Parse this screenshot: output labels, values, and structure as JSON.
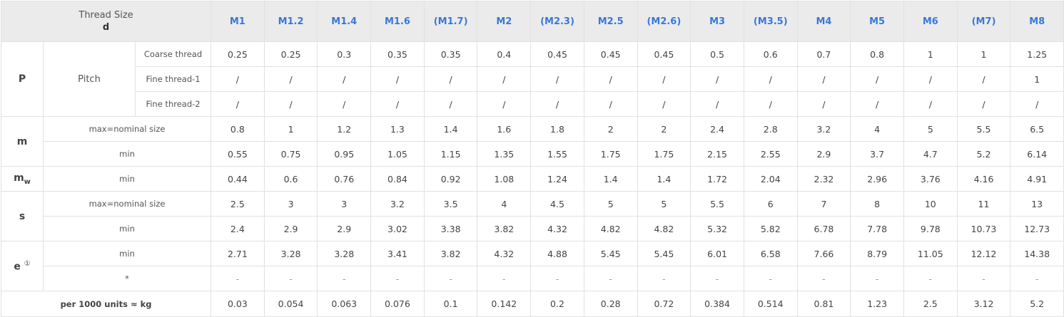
{
  "header": {
    "corner_line1": "Thread Size",
    "corner_line2": "d",
    "sizes": [
      "M1",
      "M1.2",
      "M1.4",
      "M1.6",
      "(M1.7)",
      "M2",
      "(M2.3)",
      "M2.5",
      "(M2.6)",
      "M3",
      "(M3.5)",
      "M4",
      "M5",
      "M6",
      "(M7)",
      "M8"
    ]
  },
  "rows": {
    "P": {
      "symbol": "P",
      "group_label": "Pitch",
      "coarse": {
        "label": "Coarse thread",
        "values": [
          "0.25",
          "0.25",
          "0.3",
          "0.35",
          "0.35",
          "0.4",
          "0.45",
          "0.45",
          "0.45",
          "0.5",
          "0.6",
          "0.7",
          "0.8",
          "1",
          "1",
          "1.25"
        ]
      },
      "fine1": {
        "label": "Fine thread-1",
        "values": [
          "/",
          "/",
          "/",
          "/",
          "/",
          "/",
          "/",
          "/",
          "/",
          "/",
          "/",
          "/",
          "/",
          "/",
          "/",
          "1"
        ]
      },
      "fine2": {
        "label": "Fine thread-2",
        "values": [
          "/",
          "/",
          "/",
          "/",
          "/",
          "/",
          "/",
          "/",
          "/",
          "/",
          "/",
          "/",
          "/",
          "/",
          "/",
          "/"
        ]
      }
    },
    "m": {
      "symbol": "m",
      "max": {
        "label": "max=nominal size",
        "values": [
          "0.8",
          "1",
          "1.2",
          "1.3",
          "1.4",
          "1.6",
          "1.8",
          "2",
          "2",
          "2.4",
          "2.8",
          "3.2",
          "4",
          "5",
          "5.5",
          "6.5"
        ]
      },
      "min": {
        "label": "min",
        "values": [
          "0.55",
          "0.75",
          "0.95",
          "1.05",
          "1.15",
          "1.35",
          "1.55",
          "1.75",
          "1.75",
          "2.15",
          "2.55",
          "2.9",
          "3.7",
          "4.7",
          "5.2",
          "6.14"
        ]
      }
    },
    "mw": {
      "symbol": "m",
      "subscript": "w",
      "min": {
        "label": "min",
        "values": [
          "0.44",
          "0.6",
          "0.76",
          "0.84",
          "0.92",
          "1.08",
          "1.24",
          "1.4",
          "1.4",
          "1.72",
          "2.04",
          "2.32",
          "2.96",
          "3.76",
          "4.16",
          "4.91"
        ]
      }
    },
    "s": {
      "symbol": "s",
      "max": {
        "label": "max=nominal size",
        "values": [
          "2.5",
          "3",
          "3",
          "3.2",
          "3.5",
          "4",
          "4.5",
          "5",
          "5",
          "5.5",
          "6",
          "7",
          "8",
          "10",
          "11",
          "13"
        ]
      },
      "min": {
        "label": "min",
        "values": [
          "2.4",
          "2.9",
          "2.9",
          "3.02",
          "3.38",
          "3.82",
          "4.32",
          "4.82",
          "4.82",
          "5.32",
          "5.82",
          "6.78",
          "7.78",
          "9.78",
          "10.73",
          "12.73"
        ]
      }
    },
    "e": {
      "symbol": "e",
      "superscript": "①",
      "min": {
        "label": "min",
        "values": [
          "2.71",
          "3.28",
          "3.28",
          "3.41",
          "3.82",
          "4.32",
          "4.88",
          "5.45",
          "5.45",
          "6.01",
          "6.58",
          "7.66",
          "8.79",
          "11.05",
          "12.12",
          "14.38"
        ]
      },
      "star": {
        "label": "*",
        "values": [
          "-",
          "-",
          "-",
          "-",
          "-",
          "-",
          "-",
          "-",
          "-",
          "-",
          "-",
          "-",
          "-",
          "-",
          "-",
          "-"
        ]
      }
    },
    "weight": {
      "label": "per 1000 units ≈ kg",
      "values": [
        "0.03",
        "0.054",
        "0.063",
        "0.076",
        "0.1",
        "0.142",
        "0.2",
        "0.28",
        "0.72",
        "0.384",
        "0.514",
        "0.81",
        "1.23",
        "2.5",
        "3.12",
        "5.2"
      ]
    }
  }
}
